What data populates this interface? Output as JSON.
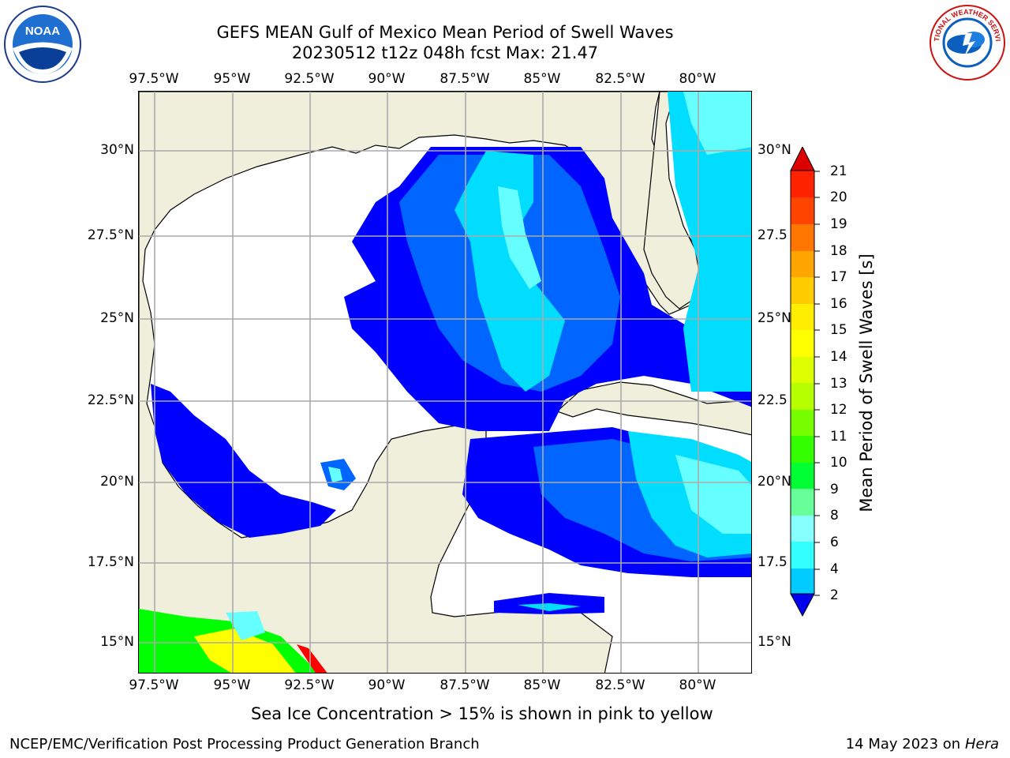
{
  "header": {
    "title_line1": "GEFS MEAN Gulf of Mexico Mean Period of Swell Waves",
    "title_line2": "20230512 t12z 048h fcst   Max: 21.47"
  },
  "logos": {
    "noaa_text": "NOAA",
    "nws_text": "NATIONAL WEATHER SERVICE"
  },
  "axes": {
    "lon_ticks": [
      "97.5°W",
      "95°W",
      "92.5°W",
      "90°W",
      "87.5°W",
      "85°W",
      "82.5°W",
      "80°W"
    ],
    "lat_ticks_left": [
      "30°N",
      "27.5°N",
      "25°N",
      "22.5°N",
      "20°N",
      "17.5°N",
      "15°N"
    ],
    "lat_ticks_right": [
      "30°N",
      "27.5",
      "25°N",
      "22.5",
      "20°N",
      "17.5",
      "15°N"
    ]
  },
  "colorbar": {
    "label": "Mean Period of Swell Waves [s]",
    "ticks": [
      "21",
      "20",
      "19",
      "18",
      "17",
      "16",
      "15",
      "14",
      "13",
      "12",
      "11",
      "10",
      "9",
      "8",
      "6",
      "4",
      "2"
    ],
    "colors": {
      "deep_blue": "#0000ff",
      "blue": "#0066ff",
      "cyan": "#00ddff",
      "light_cyan": "#66ffff",
      "green": "#00ff00",
      "yellow": "#ffff00",
      "orange": "#ff9900",
      "red": "#ff0000",
      "land": "#efefdc"
    }
  },
  "map": {
    "lon_range": [
      -98.0,
      -81.4
    ],
    "lat_range": [
      14.0,
      31.9
    ]
  },
  "notes": {
    "ice_note": "Sea Ice Concentration > 15% is shown in pink to yellow"
  },
  "footer": {
    "left": "NCEP/EMC/Verification Post Processing Product Generation Branch",
    "right_prefix": "14 May 2023 on",
    "right_host": "Hera"
  }
}
